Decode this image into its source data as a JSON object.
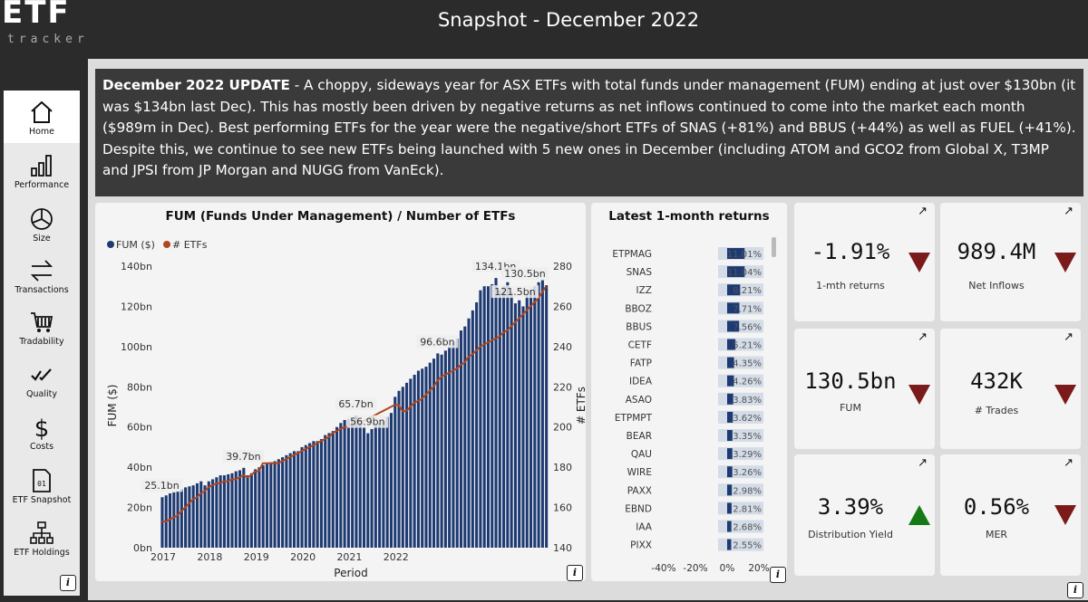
{
  "header": {
    "logo_big": "ETF",
    "logo_small": "tracker",
    "title": "Snapshot - December 2022"
  },
  "sidebar": {
    "items": [
      {
        "label": "Home",
        "icon": "home-icon"
      },
      {
        "label": "Performance",
        "icon": "bar-chart-icon"
      },
      {
        "label": "Size",
        "icon": "pie-icon"
      },
      {
        "label": "Transactions",
        "icon": "transfer-arrows-icon"
      },
      {
        "label": "Tradability",
        "icon": "cart-icon"
      },
      {
        "label": "Quality",
        "icon": "check-icon"
      },
      {
        "label": "Costs",
        "icon": "dollar-icon"
      },
      {
        "label": "ETF Snapshot",
        "icon": "document-icon"
      },
      {
        "label": "ETF Holdings",
        "icon": "hierarchy-icon"
      }
    ],
    "info": "i"
  },
  "update": {
    "heading": "December 2022 UPDATE",
    "body": " - A choppy, sideways year for ASX ETFs with total funds under management (FUM) ending at just over $130bn (it was $134bn last Dec). This has mostly been driven by negative returns as net inflows continued to come into the market each month ($989m in Dec). Best performing ETFs for the year were the negative/short ETFs of SNAS (+81%) and BBUS (+44%) as well as FUEL (+41%). Despite this, we continue to see new ETFs being launched with 5 new ones in December (including ATOM and GCO2 from Global X, T3MP and JPSI from JP Morgan and NUGG from VanEck)."
  },
  "colors": {
    "fum": "#1e3a72",
    "etfs": "#b0461e",
    "down": "#7a1a1a",
    "up": "#157a15"
  },
  "fum_chart": {
    "title": "FUM (Funds Under Management) / Number of ETFs",
    "legend": [
      "FUM ($)",
      "# ETFs"
    ],
    "xlabel": "Period",
    "ylabel_left": "FUM ($)",
    "ylabel_right": "# ETFs",
    "info": "i"
  },
  "chart_data": [
    {
      "type": "bar",
      "title": "FUM (Funds Under Management) / Number of ETFs",
      "xlabel": "Period",
      "ylabel": "FUM ($)",
      "y2label": "# ETFs",
      "ylim": [
        0,
        140
      ],
      "y2lim": [
        140,
        280
      ],
      "yticks": [
        "0bn",
        "20bn",
        "40bn",
        "60bn",
        "80bn",
        "100bn",
        "120bn",
        "140bn"
      ],
      "y2ticks": [
        "140",
        "160",
        "180",
        "200",
        "220",
        "240",
        "260",
        "280"
      ],
      "xticks": [
        "2017",
        "2018",
        "2019",
        "2020",
        "2021",
        "2022"
      ],
      "series": [
        {
          "name": "FUM ($)",
          "type": "bar",
          "values": [
            25.1,
            26,
            27,
            27.5,
            28,
            29,
            30,
            30.5,
            31,
            32,
            33,
            31,
            33,
            34,
            35,
            36,
            36,
            36.5,
            37,
            38,
            38.5,
            39.7,
            36,
            37,
            39,
            40,
            41,
            42,
            42.5,
            43,
            44,
            45,
            46,
            47,
            48,
            48,
            50,
            51,
            52,
            53,
            53,
            54,
            56,
            57,
            58,
            60,
            62,
            63.5,
            64,
            64.5,
            65.7,
            62,
            60,
            56.9,
            59,
            61,
            62,
            63,
            65,
            67,
            75,
            78,
            80,
            82,
            84,
            86,
            88,
            89,
            90,
            92,
            94,
            96.6,
            96,
            98,
            100,
            102,
            104,
            108,
            110,
            114,
            118,
            122,
            128,
            130,
            130,
            131,
            134.1,
            128,
            130,
            132,
            127,
            121.5,
            123,
            120,
            126,
            128,
            130,
            132,
            133,
            130.5
          ]
        },
        {
          "name": "# ETFs",
          "type": "line",
          "values": [
            153,
            153,
            154,
            155,
            156,
            158,
            160,
            162,
            164,
            165,
            167,
            168,
            170,
            171,
            172,
            172,
            173,
            173,
            174,
            174,
            175,
            176,
            175,
            176,
            178,
            178,
            182,
            182,
            182,
            182,
            182,
            183,
            184,
            185,
            186,
            187,
            188,
            189,
            190,
            191,
            192,
            193,
            194,
            195,
            197,
            198,
            199,
            200,
            200,
            201,
            202,
            203,
            203,
            204,
            205,
            206,
            207,
            208,
            209,
            210,
            211,
            211,
            208,
            208,
            210,
            212,
            213,
            214,
            216,
            218,
            220,
            223,
            225,
            226,
            227,
            228,
            229,
            231,
            232,
            235,
            236,
            238,
            240,
            241,
            242,
            243,
            244,
            245,
            247,
            248,
            250,
            252,
            254,
            256,
            258,
            260,
            262,
            264,
            267,
            270
          ]
        }
      ],
      "data_labels": [
        {
          "text": "25.1bn",
          "index": 0
        },
        {
          "text": "39.7bn",
          "index": 21
        },
        {
          "text": "65.7bn",
          "index": 50
        },
        {
          "text": "56.9bn",
          "index": 53
        },
        {
          "text": "96.6bn",
          "index": 71
        },
        {
          "text": "134.1bn",
          "index": 86
        },
        {
          "text": "121.5bn",
          "index": 91
        },
        {
          "text": "130.5bn",
          "index": 99
        }
      ],
      "legend_position": "top-left",
      "grid": false
    },
    {
      "type": "bar",
      "orientation": "horizontal",
      "title": "Latest 1-month returns",
      "categories": [
        "ETPMAG",
        "SNAS",
        "IZZ",
        "BBOZ",
        "BBUS",
        "CETF",
        "FATP",
        "IDEA",
        "ASAO",
        "ETPMPT",
        "BEAR",
        "QAU",
        "WIRE",
        "PAXX",
        "EBND",
        "IAA",
        "PIXX"
      ],
      "values": [
        11.01,
        11.04,
        8.21,
        7.71,
        7.56,
        5.21,
        4.35,
        4.26,
        3.83,
        3.62,
        3.35,
        3.29,
        3.26,
        2.98,
        2.81,
        2.68,
        2.55
      ],
      "value_labels": [
        "11.01%",
        "11.04%",
        "8.21%",
        "7.71%",
        "7.56%",
        "5.21%",
        "4.35%",
        "4.26%",
        "3.83%",
        "3.62%",
        "3.35%",
        "3.29%",
        "3.26%",
        "2.98%",
        "2.81%",
        "2.68%",
        "2.55%"
      ],
      "xticks": [
        "-40%",
        "-20%",
        "0%",
        "20%"
      ],
      "xlim": [
        -40,
        20
      ]
    }
  ],
  "returns": {
    "title": "Latest 1-month returns",
    "info": "i"
  },
  "kpis": [
    {
      "value": "-1.91%",
      "label": "1-mth returns",
      "direction": "down",
      "link": "↗"
    },
    {
      "value": "989.4M",
      "label": "Net Inflows",
      "direction": "down",
      "link": "↗"
    },
    {
      "value": "130.5bn",
      "label": "FUM",
      "direction": "down",
      "link": "↗"
    },
    {
      "value": "432K",
      "label": "# Trades",
      "direction": "down",
      "link": "↗"
    },
    {
      "value": "3.39%",
      "label": "Distribution Yield",
      "direction": "up",
      "link": "↗"
    },
    {
      "value": "0.56%",
      "label": "MER",
      "direction": "down",
      "link": "↗"
    }
  ],
  "main_info": "i"
}
